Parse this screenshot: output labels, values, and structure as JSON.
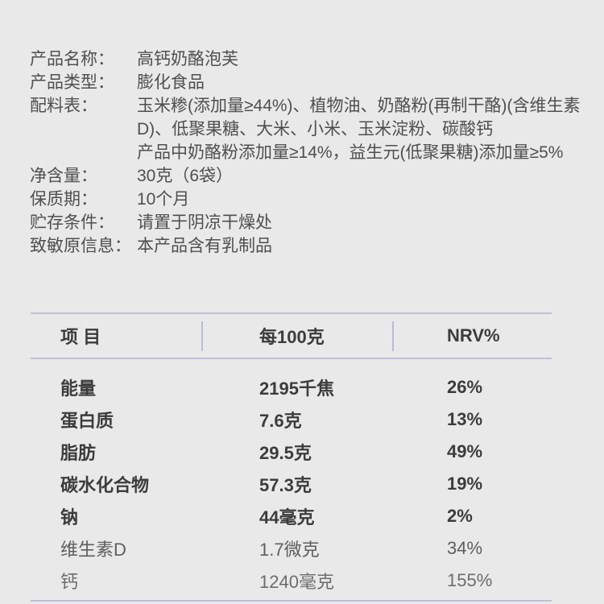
{
  "colors": {
    "background": "#e9e9e9",
    "table_line": "#bac1d8",
    "text_dark": "#3c3c3c",
    "text_info": "#4f4f4f"
  },
  "product_info": {
    "rows": [
      {
        "label": "产品名称：",
        "value": "高钙奶酪泡芙"
      },
      {
        "label": "产品类型：",
        "value": "膨化食品"
      },
      {
        "label": "配料表：",
        "value_lines": [
          "玉米糁(添加量≥44%)、植物油、奶酪粉(再制干酪)(含维生素D)、低聚果糖、大米、小米、玉米淀粉、碳酸钙",
          "产品中奶酪粉添加量≥14%，益生元(低聚果糖)添加量≥5%"
        ]
      },
      {
        "label": "净含量：",
        "value": "30克（6袋）"
      },
      {
        "label": "保质期：",
        "value": "10个月"
      },
      {
        "label": "贮存条件：",
        "value": "请置于阴凉干燥处"
      },
      {
        "label": "致敏原信息：",
        "value": "本产品含有乳制品"
      }
    ]
  },
  "nutrition_table": {
    "headers": {
      "item": "项 目",
      "per_100g": "每100克",
      "nrv": "NRV%"
    },
    "rows": [
      {
        "item": "能量",
        "per_100g": "2195千焦",
        "nrv": "26%"
      },
      {
        "item": "蛋白质",
        "per_100g": "7.6克",
        "nrv": "13%"
      },
      {
        "item": "脂肪",
        "per_100g": "29.5克",
        "nrv": "49%"
      },
      {
        "item": "碳水化合物",
        "per_100g": "57.3克",
        "nrv": "19%"
      },
      {
        "item": "钠",
        "per_100g": "44毫克",
        "nrv": "2%"
      },
      {
        "item": "维生素D",
        "per_100g": "1.7微克",
        "nrv": "34%"
      },
      {
        "item": "钙",
        "per_100g": "1240毫克",
        "nrv": "155%"
      }
    ]
  }
}
